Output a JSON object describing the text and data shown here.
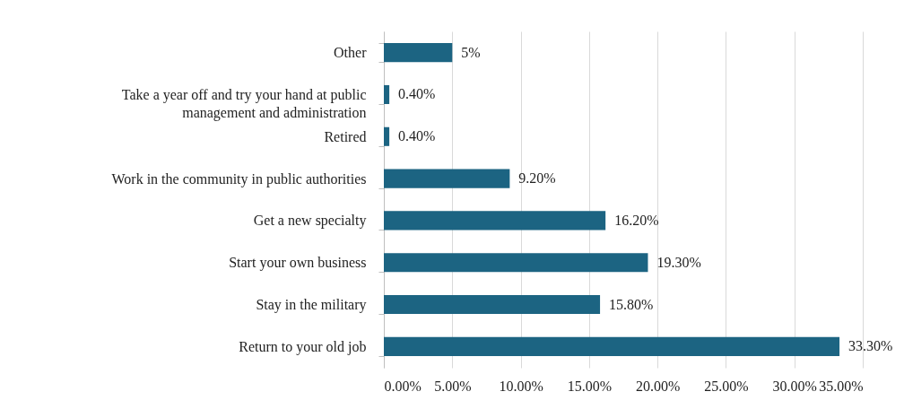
{
  "chart_data": {
    "type": "bar",
    "orientation": "horizontal",
    "categories": [
      "Other",
      "Take a year off and try your hand at public management and administration",
      "Retired",
      "Work in the community in public authorities",
      "Get a new specialty",
      "Start your own business",
      "Stay in the military",
      "Return to your old job"
    ],
    "values": [
      5,
      0.4,
      0.4,
      9.2,
      16.2,
      19.3,
      15.8,
      33.3
    ],
    "value_labels": [
      "5%",
      "0.40%",
      "0.40%",
      "9.20%",
      "16.20%",
      "19.30%",
      "15.80%",
      "33.30%"
    ],
    "color": "#1c6482",
    "xlim": [
      0,
      35
    ],
    "xticks": [
      {
        "value": 0,
        "label": "0.00%"
      },
      {
        "value": 5,
        "label": "5.00%"
      },
      {
        "value": 10,
        "label": "10.00%"
      },
      {
        "value": 15,
        "label": "15.00%"
      },
      {
        "value": 20,
        "label": "20.00%"
      },
      {
        "value": 25,
        "label": "25.00%"
      },
      {
        "value": 30,
        "label": "30.00%"
      },
      {
        "value": 35,
        "label": "35.00%"
      }
    ],
    "grid": "x"
  }
}
